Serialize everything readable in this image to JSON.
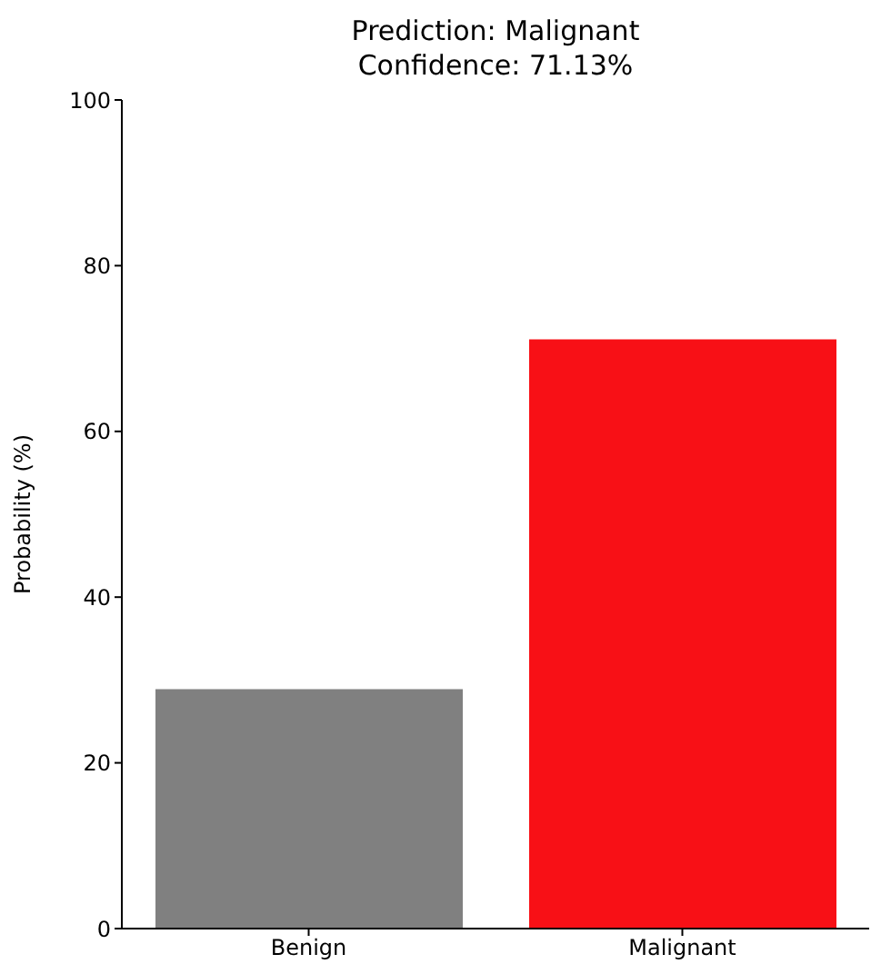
{
  "chart_data": {
    "type": "bar",
    "title": "Prediction: Malignant",
    "subtitle": "Confidence: 71.13%",
    "ylabel": "Probability (%)",
    "categories": [
      "Benign",
      "Malignant"
    ],
    "values": [
      28.9,
      71.1
    ],
    "colors": [
      "#808080",
      "#f81016"
    ],
    "ylim": [
      0,
      100
    ],
    "yticks": [
      0,
      20,
      40,
      60,
      80,
      100
    ],
    "grid": false
  }
}
